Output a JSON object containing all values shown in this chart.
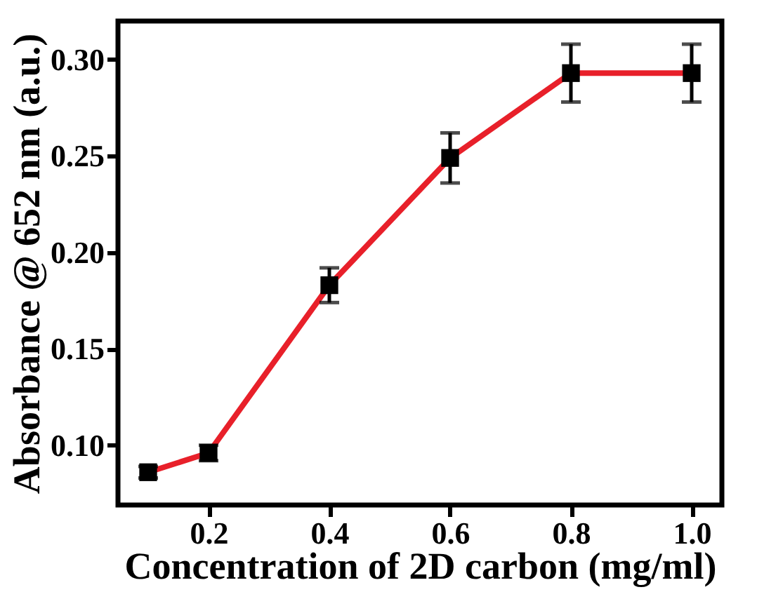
{
  "chart_data": {
    "type": "line",
    "xlabel": "Concentration of 2D carbon (mg/ml)",
    "ylabel": "Absorbance @ 652 nm (a.u.)",
    "x": [
      0.1,
      0.2,
      0.4,
      0.6,
      0.8,
      1.0
    ],
    "series": [
      {
        "color": "#e8202a",
        "values": [
          0.086,
          0.096,
          0.183,
          0.249,
          0.293,
          0.293
        ],
        "errors": [
          0.003,
          0.004,
          0.009,
          0.013,
          0.015,
          0.015
        ]
      }
    ],
    "xlim": [
      0.05,
      1.05
    ],
    "xticks": [
      {
        "value": 0.2,
        "label": "0.2"
      },
      {
        "value": 0.4,
        "label": "0.4"
      },
      {
        "value": 0.6,
        "label": "0.6"
      },
      {
        "value": 0.8,
        "label": "0.8"
      },
      {
        "value": 1.0,
        "label": "1.0"
      }
    ],
    "ylim": [
      0.069,
      0.32
    ],
    "yticks": [
      {
        "value": 0.1,
        "label": "0.10"
      },
      {
        "value": 0.15,
        "label": "0.15"
      },
      {
        "value": 0.2,
        "label": "0.20"
      },
      {
        "value": 0.25,
        "label": "0.25"
      },
      {
        "value": 0.3,
        "label": "0.30"
      }
    ],
    "marker": "square",
    "line_style": "solid"
  }
}
